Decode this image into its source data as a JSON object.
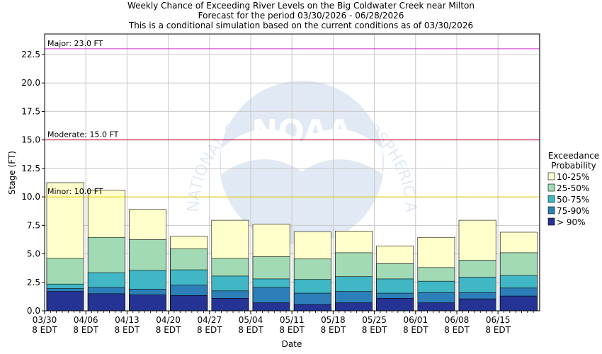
{
  "chart_data": {
    "type": "bar",
    "title_lines": [
      "Weekly Chance of Exceeding River Levels on the Big Coldwater Creek near Milton",
      "Forecast for the period 03/30/2026 - 06/28/2026",
      "This is a conditional simulation based on the current conditions as of 03/30/2026"
    ],
    "xlabel": "Date",
    "ylabel": "Stage (FT)",
    "ylim": [
      0,
      24.3
    ],
    "y_ticks": [
      "0.0",
      "2.5",
      "5.0",
      "7.5",
      "10.0",
      "12.5",
      "15.0",
      "17.5",
      "20.0",
      "22.5"
    ],
    "y_tick_values": [
      0,
      2.5,
      5,
      7.5,
      10,
      12.5,
      15,
      17.5,
      20,
      22.5
    ],
    "x_ticks": [
      {
        "date": "03/30",
        "tz": "8 EDT"
      },
      {
        "date": "04/06",
        "tz": "8 EDT"
      },
      {
        "date": "04/13",
        "tz": "8 EDT"
      },
      {
        "date": "04/20",
        "tz": "8 EDT"
      },
      {
        "date": "04/27",
        "tz": "8 EDT"
      },
      {
        "date": "05/04",
        "tz": "8 EDT"
      },
      {
        "date": "05/11",
        "tz": "8 EDT"
      },
      {
        "date": "05/18",
        "tz": "8 EDT"
      },
      {
        "date": "05/25",
        "tz": "8 EDT"
      },
      {
        "date": "06/01",
        "tz": "8 EDT"
      },
      {
        "date": "06/08",
        "tz": "8 EDT"
      },
      {
        "date": "06/15",
        "tz": "8 EDT"
      }
    ],
    "thresholds": [
      {
        "label": "Major: 23.0 FT",
        "value": 23.0,
        "color": "#cc33cc"
      },
      {
        "label": "Moderate: 15.0 FT",
        "value": 15.0,
        "color": "#cc0033"
      },
      {
        "label": "Minor: 10.0 FT",
        "value": 10.0,
        "color": "#e6c800"
      }
    ],
    "legend": {
      "title_lines": [
        "Exceedance",
        "Probability"
      ],
      "items": [
        {
          "label": "10-25%",
          "color": "#ffffcc"
        },
        {
          "label": "25-50%",
          "color": "#a1dab4"
        },
        {
          "label": "50-75%",
          "color": "#41b6c4"
        },
        {
          "label": "75-90%",
          "color": "#2c7fb8"
        },
        {
          "label": "> 90%",
          "color": "#253494"
        }
      ]
    },
    "series_order": [
      "> 90%",
      "75-90%",
      "50-75%",
      "25-50%",
      "10-25%"
    ],
    "bars": [
      {
        "week": "03/30",
        "levels": [
          1.7,
          1.95,
          2.35,
          4.6,
          11.25
        ]
      },
      {
        "week": "04/06",
        "levels": [
          1.5,
          2.05,
          3.35,
          6.45,
          10.6
        ]
      },
      {
        "week": "04/13",
        "levels": [
          1.4,
          1.9,
          3.55,
          6.25,
          8.9
        ]
      },
      {
        "week": "04/20",
        "levels": [
          1.35,
          2.25,
          3.6,
          5.45,
          6.55
        ]
      },
      {
        "week": "04/27",
        "levels": [
          1.1,
          1.75,
          3.05,
          4.6,
          7.95
        ]
      },
      {
        "week": "05/04",
        "levels": [
          0.7,
          2.05,
          2.8,
          4.75,
          7.6
        ]
      },
      {
        "week": "05/11",
        "levels": [
          0.55,
          1.55,
          2.75,
          4.55,
          6.95
        ]
      },
      {
        "week": "05/18",
        "levels": [
          0.7,
          1.7,
          3.0,
          5.1,
          7.0
        ]
      },
      {
        "week": "05/25",
        "levels": [
          1.1,
          1.55,
          2.8,
          4.15,
          5.7
        ]
      },
      {
        "week": "06/01",
        "levels": [
          0.7,
          1.6,
          2.6,
          3.8,
          6.45
        ]
      },
      {
        "week": "06/08",
        "levels": [
          1.05,
          1.6,
          2.95,
          4.45,
          7.95
        ]
      },
      {
        "week": "06/15",
        "levels": [
          1.3,
          2.0,
          3.1,
          5.1,
          6.9
        ]
      }
    ]
  },
  "watermark": {
    "logo_text": "NOAA",
    "ring_text": "NATIONAL OCEANIC AND ATMOSPHERIC ADMINISTRATION"
  }
}
